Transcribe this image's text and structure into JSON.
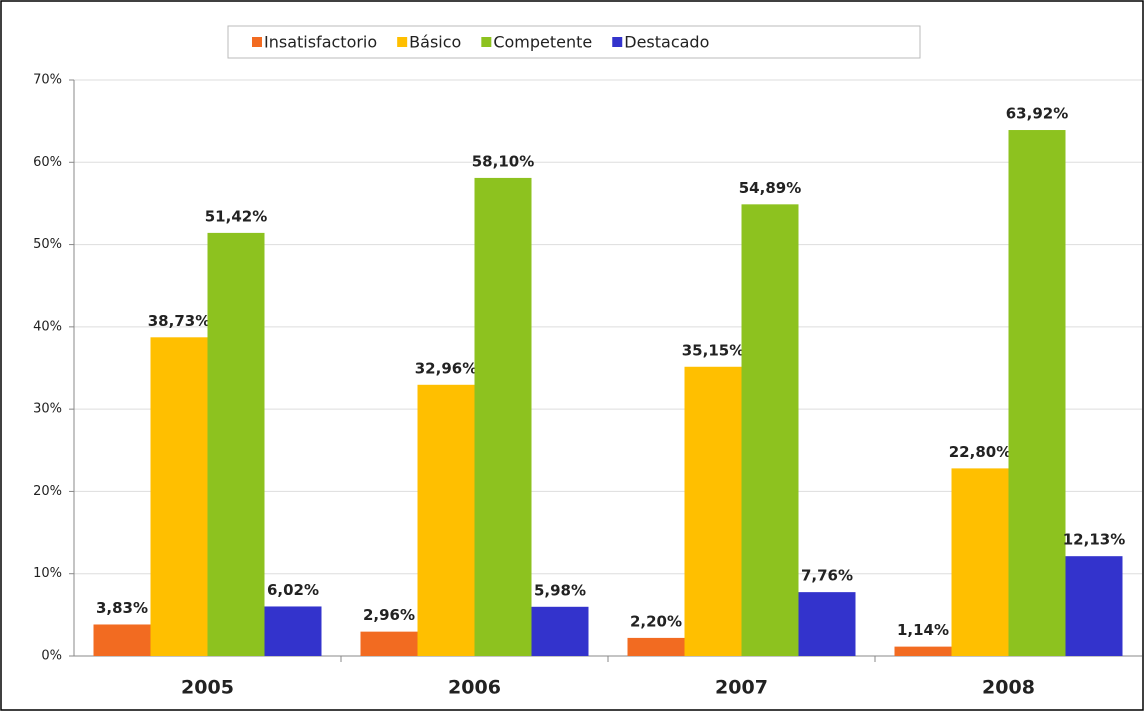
{
  "chart_data": {
    "type": "bar",
    "categories": [
      "2005",
      "2006",
      "2007",
      "2008"
    ],
    "series": [
      {
        "name": "Insatisfactorio",
        "color": "#f26b21",
        "values": [
          3.83,
          2.96,
          2.2,
          1.14
        ],
        "value_labels": [
          "3,83%",
          "2,96%",
          "2,20%",
          "1,14%"
        ]
      },
      {
        "name": "Básico",
        "color": "#ffbf00",
        "values": [
          38.73,
          32.96,
          35.15,
          22.8
        ],
        "value_labels": [
          "38,73%",
          "32,96%",
          "35,15%",
          "22,80%"
        ]
      },
      {
        "name": "Competente",
        "color": "#8dc21f",
        "values": [
          51.42,
          58.1,
          54.89,
          63.92
        ],
        "value_labels": [
          "51,42%",
          "58,10%",
          "54,89%",
          "63,92%"
        ]
      },
      {
        "name": "Destacado",
        "color": "#3333cc",
        "values": [
          6.02,
          5.98,
          7.76,
          12.13
        ],
        "value_labels": [
          "6,02%",
          "5,98%",
          "7,76%",
          "12,13%"
        ]
      }
    ],
    "ylim": [
      0,
      70
    ],
    "yticks": [
      {
        "value": 0,
        "label": "0%"
      },
      {
        "value": 10,
        "label": "10%"
      },
      {
        "value": 20,
        "label": "20%"
      },
      {
        "value": 30,
        "label": "30%"
      },
      {
        "value": 40,
        "label": "40%"
      },
      {
        "value": 50,
        "label": "50%"
      },
      {
        "value": 60,
        "label": "60%"
      },
      {
        "value": 70,
        "label": "70%"
      }
    ],
    "grid": true,
    "legend": "top"
  }
}
